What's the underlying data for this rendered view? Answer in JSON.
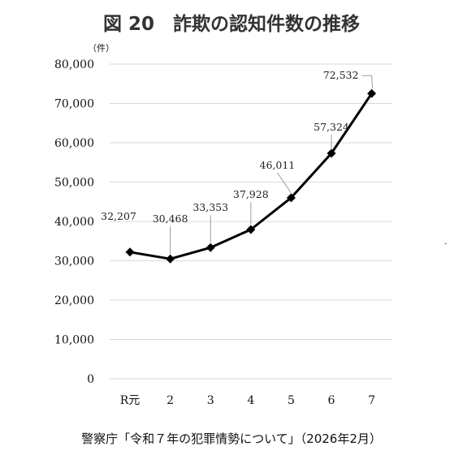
{
  "chart_data": {
    "type": "line",
    "title": "図 20　詐欺の認知件数の推移",
    "unit_label": "（件）",
    "categories": [
      "R元",
      "2",
      "3",
      "4",
      "5",
      "6",
      "7"
    ],
    "series": [
      {
        "values": [
          32207,
          30468,
          33353,
          37928,
          46011,
          57324,
          72532
        ],
        "data_labels": [
          "32,207",
          "30,468",
          "33,353",
          "37,928",
          "46,011",
          "57,324",
          "72,532"
        ]
      }
    ],
    "ylim": [
      0,
      80000
    ],
    "yticks": [
      0,
      10000,
      20000,
      30000,
      40000,
      50000,
      60000,
      70000,
      80000
    ],
    "ytick_labels": [
      "0",
      "10,000",
      "20,000",
      "30,000",
      "40,000",
      "50,000",
      "60,000",
      "70,000",
      "80,000"
    ],
    "grid": true,
    "line_color": "#000000",
    "grid_color": "#d9d9d9"
  },
  "source": "警察庁「令和７年の犯罪情勢について」（2026年2月）"
}
